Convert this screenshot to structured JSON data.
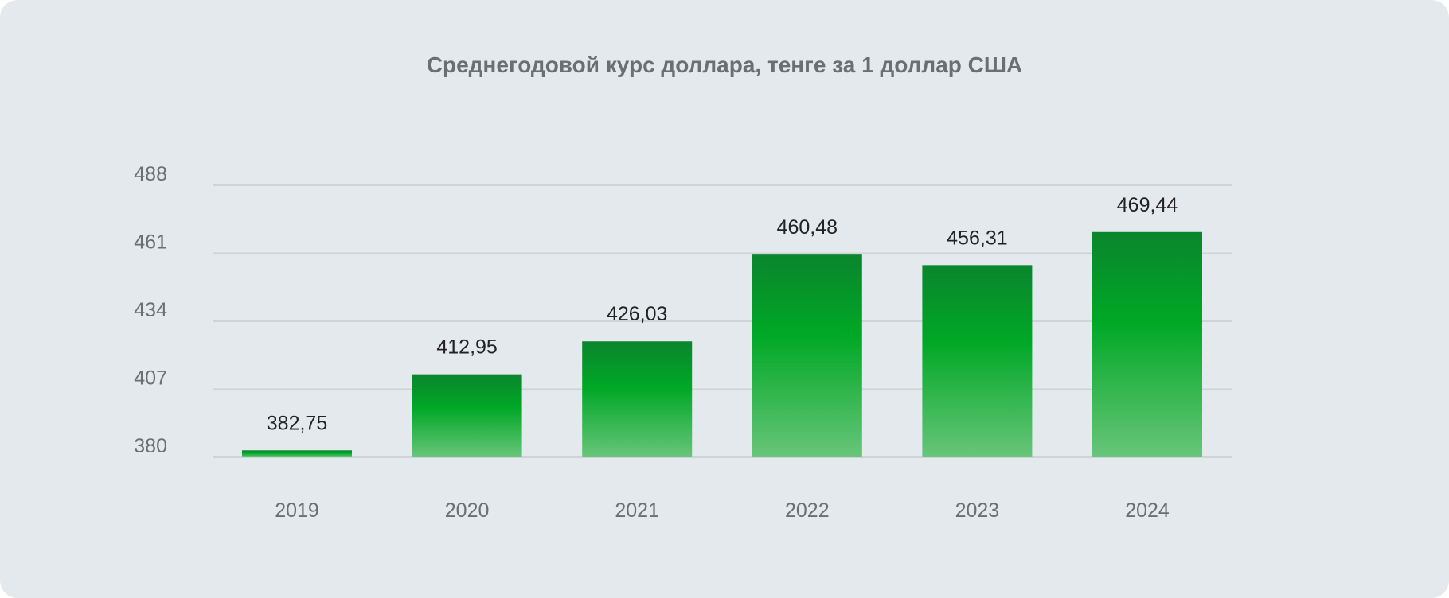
{
  "chart_data": {
    "type": "bar",
    "title": "Среднегодовой курс доллара, тенге за 1 доллар США",
    "categories": [
      "2019",
      "2020",
      "2021",
      "2022",
      "2023",
      "2024"
    ],
    "values": [
      382.75,
      412.95,
      426.03,
      460.48,
      456.31,
      469.44
    ],
    "value_labels": [
      "382,75",
      "412,95",
      "426,03",
      "460,48",
      "456,31",
      "469,44"
    ],
    "yticks": [
      380,
      407,
      434,
      461,
      488
    ],
    "ylim": [
      380,
      488
    ],
    "grid": true,
    "xlabel": "",
    "ylabel": "",
    "colors": {
      "bar_top": "#0a852d",
      "bar_mid": "#00a826",
      "bar_bottom": "#68c57a",
      "grid": "#cfd3d7",
      "background": "#e4e9ed"
    }
  }
}
